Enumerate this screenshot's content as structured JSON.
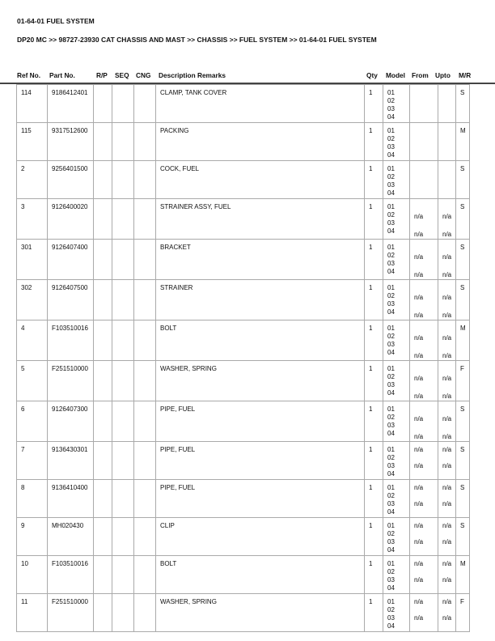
{
  "title": "01-64-01 FUEL SYSTEM",
  "breadcrumb": "DP20 MC >> 98727-23930 CAT CHASSIS AND MAST >> CHASSIS >> FUEL SYSTEM >> 01-64-01 FUEL SYSTEM",
  "columns": {
    "ref": "Ref No.",
    "part": "Part No.",
    "rp": "R/P",
    "seq": "SEQ",
    "cng": "CNG",
    "desc": "Description Remarks",
    "qty": "Qty",
    "model": "Model",
    "from": "From",
    "upto": "Upto",
    "mr": "M/R"
  },
  "rows": [
    {
      "ref": "114",
      "part": "9186412401",
      "desc": "CLAMP, TANK COVER",
      "qty": "1",
      "models": [
        "01",
        "02",
        "03",
        "04"
      ],
      "from": [
        "",
        "",
        "",
        ""
      ],
      "upto": [
        "",
        "",
        "",
        ""
      ],
      "mr": "S"
    },
    {
      "ref": "115",
      "part": "9317512600",
      "desc": "PACKING",
      "qty": "1",
      "models": [
        "01",
        "02",
        "03",
        "04"
      ],
      "from": [
        "",
        "",
        "",
        ""
      ],
      "upto": [
        "",
        "",
        "",
        ""
      ],
      "mr": "M"
    },
    {
      "ref": "2",
      "part": "9256401500",
      "desc": "COCK, FUEL",
      "qty": "1",
      "models": [
        "01",
        "02",
        "03",
        "04"
      ],
      "from": [
        "",
        "",
        "",
        ""
      ],
      "upto": [
        "",
        "",
        "",
        ""
      ],
      "mr": "S"
    },
    {
      "ref": "3",
      "part": "9126400020",
      "desc": "STRAINER ASSY, FUEL",
      "qty": "1",
      "models": [
        "01",
        "02",
        "03",
        "04"
      ],
      "from": [
        "",
        "n/a",
        "",
        "n/a"
      ],
      "upto": [
        "",
        "n/a",
        "",
        "n/a"
      ],
      "mr": "S"
    },
    {
      "ref": "301",
      "part": "9126407400",
      "desc": "BRACKET",
      "qty": "1",
      "models": [
        "01",
        "02",
        "03",
        "04"
      ],
      "from": [
        "",
        "n/a",
        "",
        "n/a"
      ],
      "upto": [
        "",
        "n/a",
        "",
        "n/a"
      ],
      "mr": "S"
    },
    {
      "ref": "302",
      "part": "9126407500",
      "desc": "STRAINER",
      "qty": "1",
      "models": [
        "01",
        "02",
        "03",
        "04"
      ],
      "from": [
        "",
        "n/a",
        "",
        "n/a"
      ],
      "upto": [
        "",
        "n/a",
        "",
        "n/a"
      ],
      "mr": "S"
    },
    {
      "ref": "4",
      "part": "F103510016",
      "desc": "BOLT",
      "qty": "1",
      "models": [
        "01",
        "02",
        "03",
        "04"
      ],
      "from": [
        "",
        "n/a",
        "",
        "n/a"
      ],
      "upto": [
        "",
        "n/a",
        "",
        "n/a"
      ],
      "mr": "M"
    },
    {
      "ref": "5",
      "part": "F251510000",
      "desc": "WASHER, SPRING",
      "qty": "1",
      "models": [
        "01",
        "02",
        "03",
        "04"
      ],
      "from": [
        "",
        "n/a",
        "",
        "n/a"
      ],
      "upto": [
        "",
        "n/a",
        "",
        "n/a"
      ],
      "mr": "F"
    },
    {
      "ref": "6",
      "part": "9126407300",
      "desc": "PIPE, FUEL",
      "qty": "1",
      "models": [
        "01",
        "02",
        "03",
        "04"
      ],
      "from": [
        "",
        "n/a",
        "",
        "n/a"
      ],
      "upto": [
        "",
        "n/a",
        "",
        "n/a"
      ],
      "mr": "S"
    },
    {
      "ref": "7",
      "part": "9136430301",
      "desc": "PIPE, FUEL",
      "qty": "1",
      "models": [
        "01",
        "02",
        "03",
        "04"
      ],
      "from": [
        "n/a",
        "",
        "n/a",
        ""
      ],
      "upto": [
        "n/a",
        "",
        "n/a",
        ""
      ],
      "mr": "S"
    },
    {
      "ref": "8",
      "part": "9136410400",
      "desc": "PIPE, FUEL",
      "qty": "1",
      "models": [
        "01",
        "02",
        "03",
        "04"
      ],
      "from": [
        "n/a",
        "",
        "n/a",
        ""
      ],
      "upto": [
        "n/a",
        "",
        "n/a",
        ""
      ],
      "mr": "S"
    },
    {
      "ref": "9",
      "part": "MH020430",
      "desc": "CLIP",
      "qty": "1",
      "models": [
        "01",
        "02",
        "03",
        "04"
      ],
      "from": [
        "n/a",
        "",
        "n/a",
        ""
      ],
      "upto": [
        "n/a",
        "",
        "n/a",
        ""
      ],
      "mr": "S"
    },
    {
      "ref": "10",
      "part": "F103510016",
      "desc": "BOLT",
      "qty": "1",
      "models": [
        "01",
        "02",
        "03",
        "04"
      ],
      "from": [
        "n/a",
        "",
        "n/a",
        ""
      ],
      "upto": [
        "n/a",
        "",
        "n/a",
        ""
      ],
      "mr": "M"
    },
    {
      "ref": "11",
      "part": "F251510000",
      "desc": "WASHER, SPRING",
      "qty": "1",
      "models": [
        "01",
        "02",
        "03",
        "04"
      ],
      "from": [
        "n/a",
        "",
        "n/a",
        ""
      ],
      "upto": [
        "n/a",
        "",
        "n/a",
        ""
      ],
      "mr": "F"
    }
  ]
}
